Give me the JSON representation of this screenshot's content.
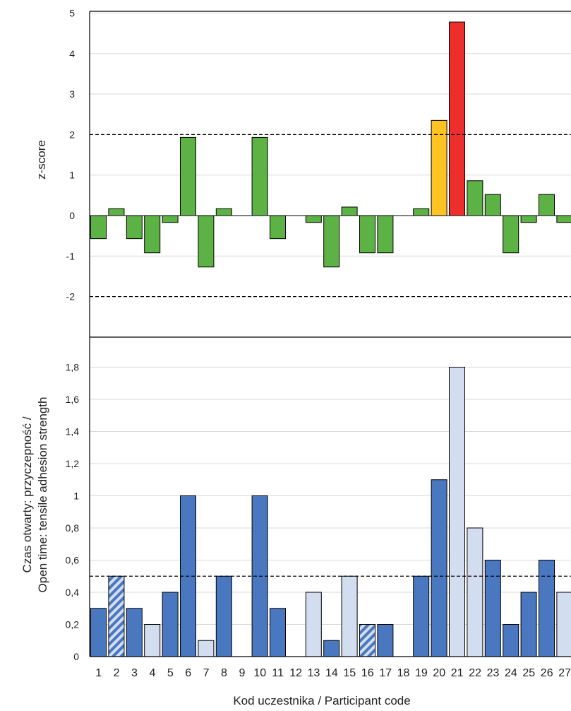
{
  "colors": {
    "green": "#5DB246",
    "yellow": "#FFC322",
    "red": "#EE2D2D",
    "dark_blue": "#4A78C0",
    "light_blue": "#D2DEF0",
    "stripe_blue": "#4A78C0",
    "stroke": "#000000"
  },
  "chart_data": [
    {
      "type": "bar",
      "ylabel": "z-score",
      "ylim": [
        -3,
        5
      ],
      "yticks": [
        "5",
        "4",
        "3",
        "2",
        "1",
        "0",
        "-1",
        "-2"
      ],
      "ytick_values": [
        5,
        4,
        3,
        2,
        1,
        0,
        -1,
        -2
      ],
      "reference_lines": [
        2,
        -2
      ],
      "categories": [
        "1",
        "2",
        "3",
        "4",
        "5",
        "6",
        "7",
        "8",
        "9",
        "10",
        "11",
        "12",
        "13",
        "14",
        "15",
        "16",
        "17",
        "18",
        "19",
        "20",
        "21",
        "22",
        "23",
        "24",
        "25",
        "26",
        "27"
      ],
      "values": [
        -0.57,
        0.17,
        -0.57,
        -0.92,
        -0.17,
        1.93,
        -1.27,
        0.17,
        null,
        1.93,
        -0.57,
        null,
        -0.17,
        -1.27,
        0.21,
        -0.92,
        -0.92,
        null,
        0.17,
        2.35,
        4.78,
        0.86,
        0.52,
        -0.92,
        -0.17,
        0.52,
        -0.17
      ],
      "bar_colors": [
        "green",
        "green",
        "green",
        "green",
        "green",
        "green",
        "green",
        "green",
        null,
        "green",
        "green",
        null,
        "green",
        "green",
        "green",
        "green",
        "green",
        null,
        "green",
        "yellow",
        "red",
        "green",
        "green",
        "green",
        "green",
        "green",
        "green"
      ]
    },
    {
      "type": "bar",
      "ylabel_line1": "Czas otwarty: przyczepność /",
      "ylabel_line2": "Open time: tensile adhesion  strength",
      "xlabel": "Kod uczestnika /  Participant code",
      "ylim": [
        0,
        2
      ],
      "yticks": [
        "1,8",
        "1,6",
        "1,4",
        "1,2",
        "1",
        "0,8",
        "0,6",
        "0,4",
        "0,2",
        "0"
      ],
      "ytick_values": [
        1.8,
        1.6,
        1.4,
        1.2,
        1.0,
        0.8,
        0.6,
        0.4,
        0.2,
        0
      ],
      "reference_lines": [
        0.5
      ],
      "categories": [
        "1",
        "2",
        "3",
        "4",
        "5",
        "6",
        "7",
        "8",
        "9",
        "10",
        "11",
        "12",
        "13",
        "14",
        "15",
        "16",
        "17",
        "18",
        "19",
        "20",
        "21",
        "22",
        "23",
        "24",
        "25",
        "26",
        "27"
      ],
      "values": [
        0.3,
        0.5,
        0.3,
        0.2,
        0.4,
        1.0,
        0.1,
        0.5,
        null,
        1.0,
        0.3,
        null,
        0.4,
        0.1,
        0.5,
        0.2,
        0.2,
        null,
        0.5,
        1.1,
        1.8,
        0.8,
        0.6,
        0.2,
        0.4,
        0.6,
        0.4
      ],
      "bar_styles": [
        "dark",
        "striped",
        "dark",
        "light",
        "dark",
        "dark",
        "light",
        "dark",
        null,
        "dark",
        "dark",
        null,
        "light",
        "dark",
        "light",
        "striped",
        "dark",
        null,
        "dark",
        "dark",
        "light",
        "light",
        "dark",
        "dark",
        "dark",
        "dark",
        "light"
      ]
    }
  ]
}
